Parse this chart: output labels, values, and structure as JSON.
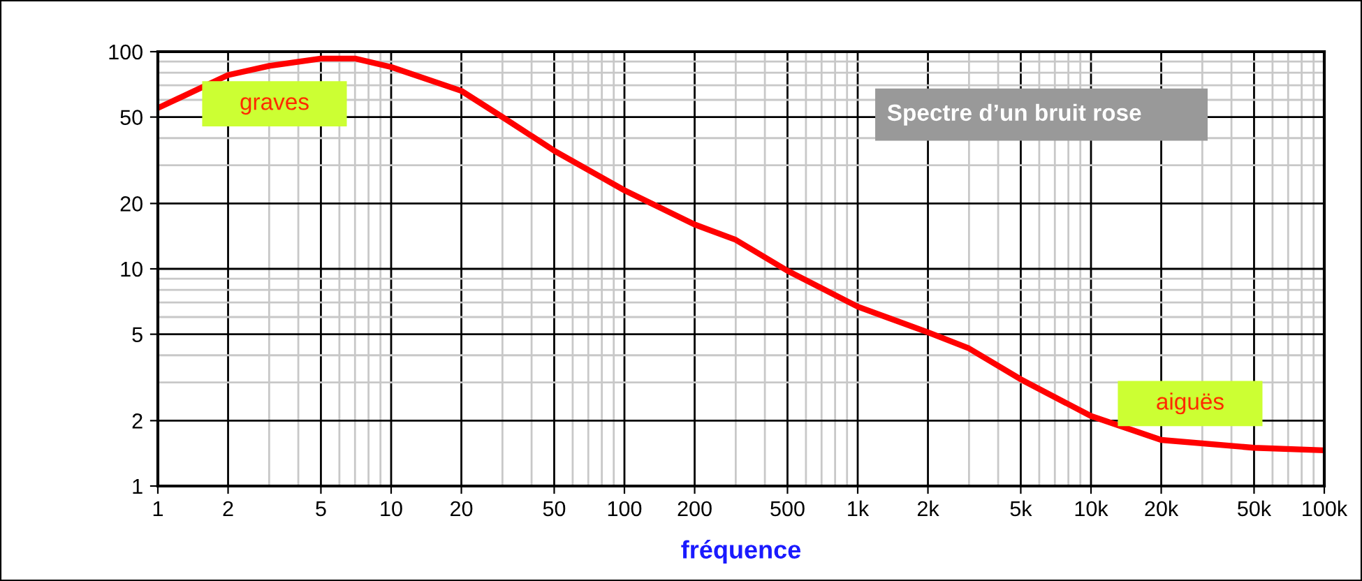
{
  "chart_data": {
    "type": "line",
    "title": "Spectre d’un bruit rose",
    "xlabel": "fréquence",
    "annotations": [
      "graves",
      "aiguës"
    ],
    "x": [
      1,
      2,
      3,
      5,
      7,
      10,
      20,
      30,
      50,
      100,
      200,
      300,
      500,
      1000,
      2000,
      3000,
      5000,
      10000,
      20000,
      50000,
      100000
    ],
    "series": [
      {
        "color": "#ff0000",
        "values": [
          55,
          78,
          86,
          93,
          93,
          85,
          66,
          50,
          35,
          23,
          16,
          13.6,
          9.8,
          6.7,
          5.1,
          4.3,
          3.1,
          2.1,
          1.63,
          1.5,
          1.46
        ]
      }
    ],
    "log": "xy",
    "xlim": [
      1,
      100000
    ],
    "ylim": [
      1,
      100
    ],
    "xticks": [
      1,
      2,
      5,
      10,
      20,
      50,
      100,
      200,
      500,
      {
        "value": 1000,
        "label": "1k"
      },
      {
        "value": 2000,
        "label": "2k"
      },
      {
        "value": 5000,
        "label": "5k"
      },
      {
        "value": 10000,
        "label": "10k"
      },
      {
        "value": 20000,
        "label": "20k"
      },
      {
        "value": 50000,
        "label": "50k"
      },
      {
        "value": 100000,
        "label": "100k"
      }
    ],
    "yticks": [
      1,
      2,
      5,
      10,
      20,
      50,
      100
    ],
    "grid": true,
    "marker": "none",
    "line_style": "solid"
  }
}
